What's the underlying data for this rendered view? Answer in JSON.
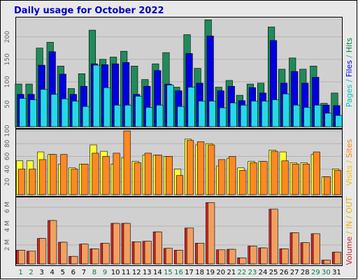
{
  "chart_data": {
    "type": "bar",
    "title": "Daily usage for October 2022",
    "categories": [
      "1",
      "2",
      "3",
      "4",
      "5",
      "6",
      "7",
      "8",
      "9",
      "10",
      "11",
      "12",
      "13",
      "14",
      "15",
      "16",
      "17",
      "18",
      "19",
      "20",
      "21",
      "22",
      "23",
      "24",
      "25",
      "26",
      "27",
      "28",
      "29",
      "30",
      "31"
    ],
    "weekend_days": [
      "1",
      "2",
      "8",
      "9",
      "15",
      "16",
      "22",
      "23",
      "29",
      "30"
    ],
    "panels": [
      {
        "name": "top",
        "side_label": [
          {
            "text": "Pages",
            "color": "#00C0C0"
          },
          {
            "text": " / ",
            "color": "#00C0C0"
          },
          {
            "text": "Files",
            "color": "#0000E0"
          },
          {
            "text": " / ",
            "color": "#00C0C0"
          },
          {
            "text": "Hits",
            "color": "#008040"
          }
        ],
        "ylim": [
          0,
          240
        ],
        "yticks": [
          50,
          100,
          150,
          200
        ],
        "series": [
          {
            "name": "Hits",
            "color": "#218A5A",
            "values": [
              95,
              95,
              175,
              188,
              135,
              85,
              118,
              215,
              150,
              155,
              168,
              135,
              105,
              140,
              165,
              88,
              205,
              130,
              238,
              88,
              103,
              70,
              95,
              97,
              222,
              128,
              153,
              128,
              135,
              52,
              75
            ]
          },
          {
            "name": "Files",
            "color": "#0000E0",
            "values": [
              72,
              72,
              137,
              167,
              117,
              72,
              90,
              140,
              138,
              140,
              143,
              72,
              90,
              125,
              95,
              80,
              163,
              97,
              202,
              80,
              90,
              58,
              87,
              75,
              192,
              97,
              123,
              97,
              110,
              48,
              47
            ]
          },
          {
            "name": "Pages",
            "color": "#28D8E8",
            "values": [
              63,
              60,
              83,
              72,
              62,
              57,
              45,
              137,
              87,
              48,
              48,
              68,
              43,
              48,
              93,
              45,
              88,
              57,
              57,
              42,
              53,
              48,
              57,
              57,
              60,
              73,
              48,
              43,
              48,
              30,
              25
            ]
          }
        ]
      },
      {
        "name": "middle",
        "side_label": [
          {
            "text": "Visits",
            "color": "#F0C000"
          },
          {
            "text": " / ",
            "color": "#F0C000"
          },
          {
            "text": "Sites",
            "color": "#FF8000"
          }
        ],
        "ylim": [
          0,
          100
        ],
        "yticks": [
          20,
          40,
          60,
          80,
          100
        ],
        "series": [
          {
            "name": "Visits",
            "color": "#FFFF33",
            "values": [
              53,
              53,
              67,
              63,
              48,
              42,
              48,
              78,
              68,
              48,
              58,
              52,
              62,
              62,
              60,
              40,
              87,
              78,
              80,
              45,
              57,
              42,
              52,
              52,
              70,
              67,
              50,
              50,
              63,
              28,
              40
            ]
          },
          {
            "name": "Sites",
            "color": "#FF8822",
            "values": [
              40,
              40,
              55,
              63,
              63,
              40,
              48,
              65,
              60,
              65,
              100,
              50,
              65,
              62,
              60,
              30,
              85,
              83,
              78,
              55,
              60,
              38,
              50,
              52,
              68,
              53,
              48,
              48,
              67,
              28,
              38
            ]
          }
        ]
      },
      {
        "name": "bottom",
        "side_label": [
          {
            "text": "Volume",
            "color": "#D02020"
          },
          {
            "text": " / ",
            "color": "#E8B000"
          },
          {
            "text": "IN",
            "color": "#E8B000"
          },
          {
            "text": " / ",
            "color": "#E8B000"
          },
          {
            "text": "OUT",
            "color": "#E8B000"
          }
        ],
        "ylim": [
          0,
          6.9
        ],
        "yticks": [
          2,
          4,
          6
        ],
        "tick_suffix": " M",
        "series": [
          {
            "name": "Volume",
            "color": "#DD2222",
            "values": [
              1.45,
              1.35,
              2.7,
              4.6,
              2.3,
              0.8,
              2.1,
              1.6,
              2.2,
              4.3,
              4.3,
              2.35,
              2.4,
              3.4,
              1.65,
              1.45,
              3.8,
              2.2,
              6.5,
              1.5,
              1.55,
              0.65,
              1.9,
              1.7,
              5.8,
              1.6,
              3.3,
              2.25,
              3.2,
              0.4,
              1.25
            ]
          },
          {
            "name": "OUT",
            "color": "#F0A060",
            "values": [
              1.45,
              1.35,
              2.7,
              4.6,
              2.3,
              0.8,
              2.1,
              1.6,
              2.2,
              4.3,
              4.3,
              2.35,
              2.4,
              3.4,
              1.65,
              1.45,
              3.8,
              2.2,
              6.5,
              1.5,
              1.55,
              0.65,
              1.9,
              1.7,
              5.8,
              1.6,
              3.3,
              2.25,
              3.2,
              0.4,
              1.25
            ]
          }
        ]
      }
    ]
  },
  "colors": {
    "title": "#0000C0",
    "weekday_label": "#000000",
    "weekend_label": "#008040"
  }
}
